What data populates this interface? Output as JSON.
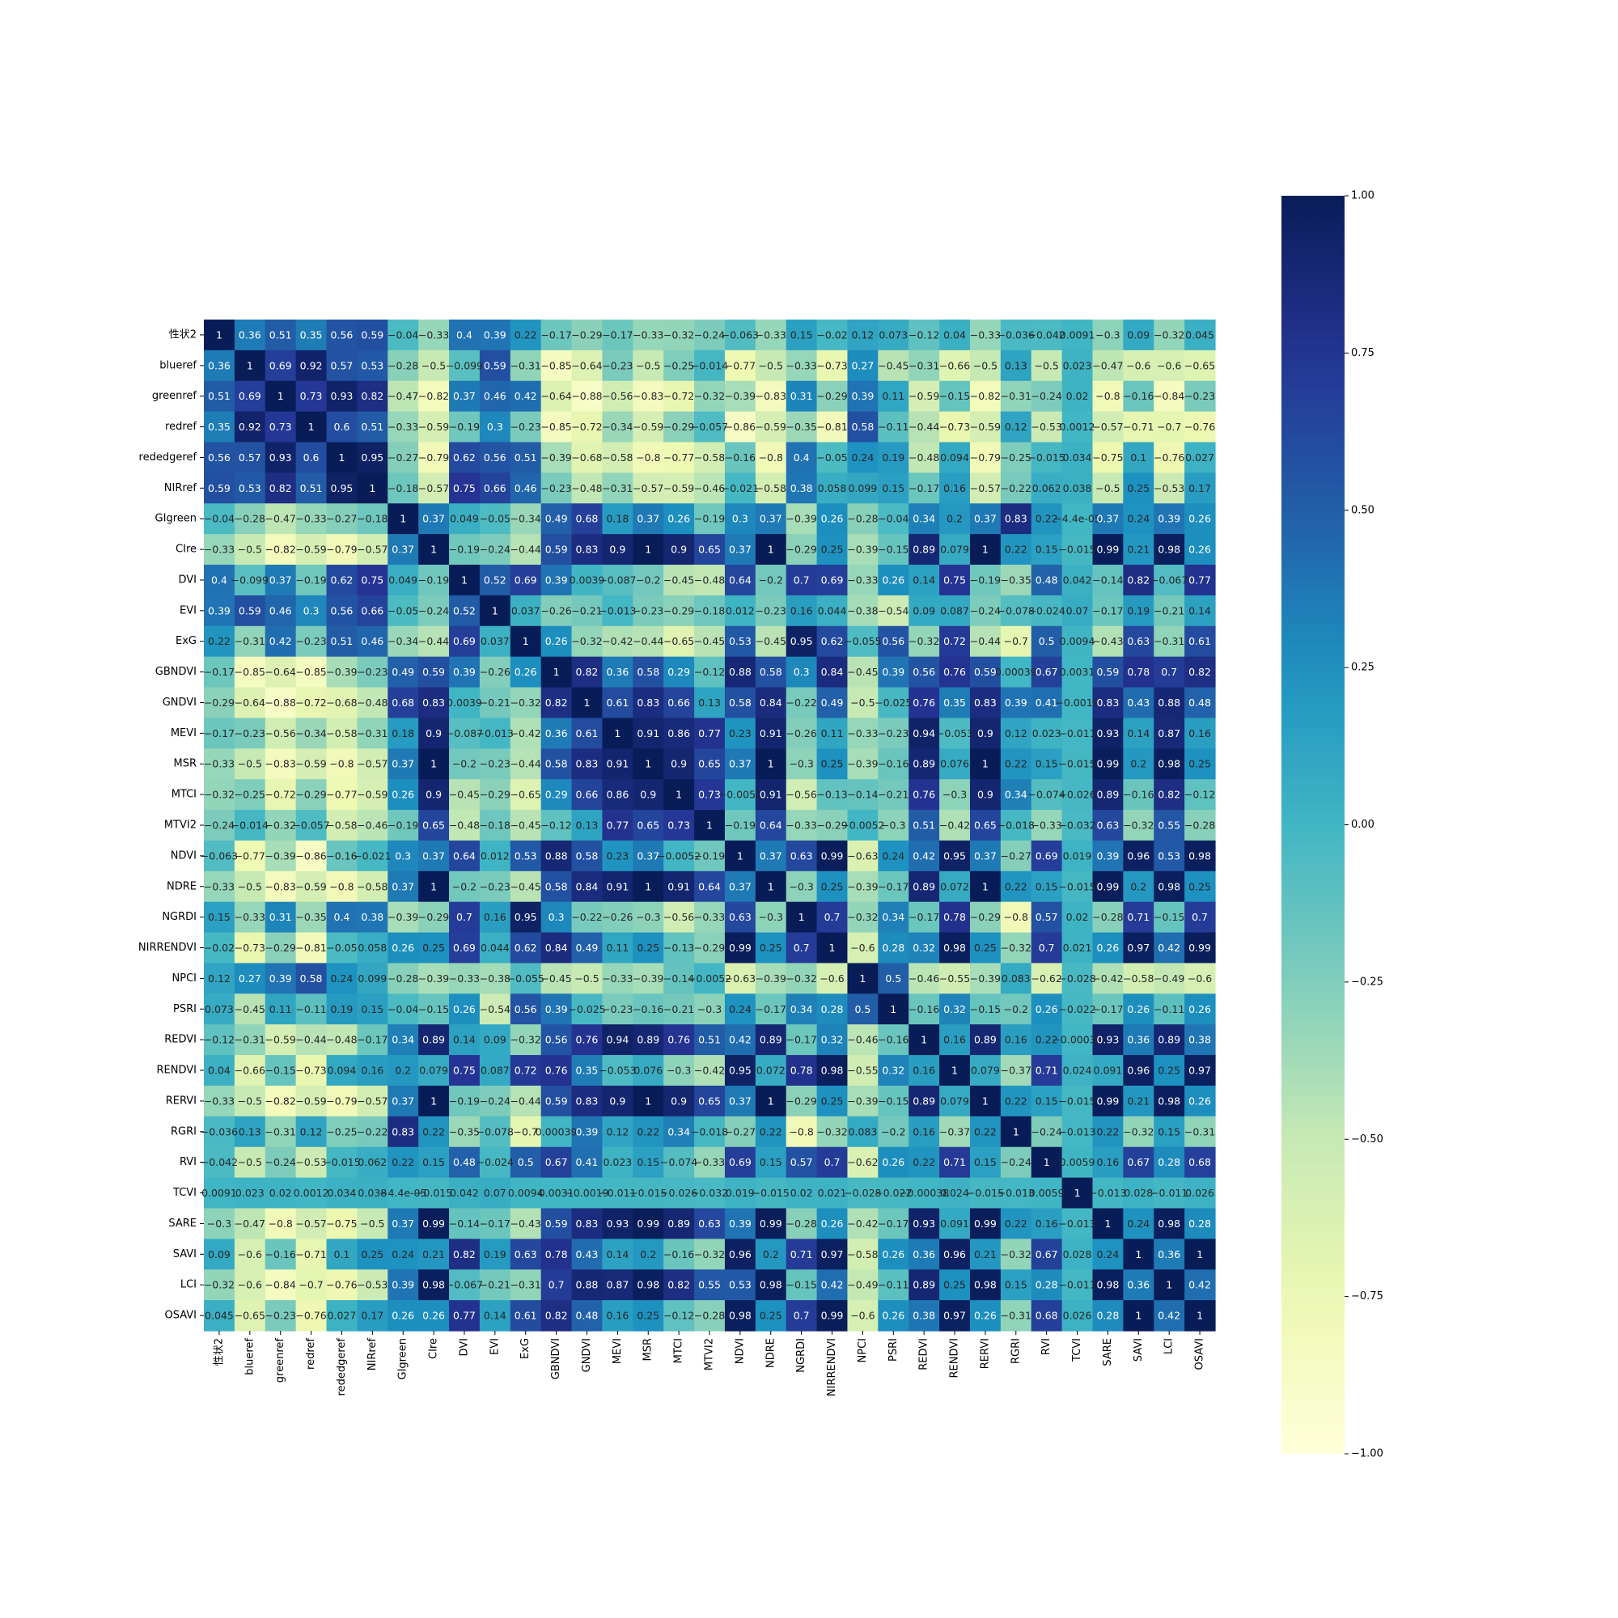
{
  "chart_data": {
    "type": "heatmap",
    "title": "",
    "xlabel": "",
    "ylabel": "",
    "colormap": "YlGnBu",
    "vmin": -1.0,
    "vmax": 1.0,
    "colorbar_ticks": [
      "1.00",
      "0.75",
      "0.50",
      "0.25",
      "0.00",
      "−0.25",
      "−0.50",
      "−0.75",
      "−1.00"
    ],
    "colorbar_tick_values": [
      1.0,
      0.75,
      0.5,
      0.25,
      0.0,
      -0.25,
      -0.5,
      -0.75,
      -1.0
    ],
    "labels": [
      "性状2",
      "blueref",
      "greenref",
      "redref",
      "rededgeref",
      "NIRref",
      "GIgreen",
      "CIre",
      "DVI",
      "EVI",
      "ExG",
      "GBNDVI",
      "GNDVI",
      "MEVI",
      "MSR",
      "MTCI",
      "MTVI2",
      "NDVI",
      "NDRE",
      "NGRDI",
      "NIRRENDVI",
      "NPCI",
      "PSRI",
      "REDVI",
      "RENDVI",
      "RERVI",
      "RGRI",
      "RVI",
      "TCVI",
      "SARE",
      "SAVI",
      "LCI",
      "OSAVI"
    ],
    "values": [
      [
        "1",
        "0.36",
        "0.51",
        "0.35",
        "0.56",
        "0.59",
        "-0.04",
        "-0.33",
        "0.4",
        "0.39",
        "0.22",
        "-0.17",
        "-0.29",
        "-0.17",
        "-0.33",
        "-0.32",
        "-0.24",
        "-0.063",
        "-0.33",
        "0.15",
        "-0.02",
        "0.12",
        "0.073",
        "-0.12",
        "0.04",
        "-0.33",
        "-0.036",
        "-0.042",
        "0.0091",
        "-0.3",
        "0.09",
        "-0.32",
        "0.045"
      ],
      [
        "0.36",
        "1",
        "0.69",
        "0.92",
        "0.57",
        "0.53",
        "-0.28",
        "-0.5",
        "-0.099",
        "0.59",
        "-0.31",
        "-0.85",
        "-0.64",
        "-0.23",
        "-0.5",
        "-0.25",
        "-0.014",
        "-0.77",
        "-0.5",
        "-0.33",
        "-0.73",
        "0.27",
        "-0.45",
        "-0.31",
        "-0.66",
        "-0.5",
        "0.13",
        "-0.5",
        "0.023",
        "-0.47",
        "-0.6",
        "-0.6",
        "-0.65"
      ],
      [
        "0.51",
        "0.69",
        "1",
        "0.73",
        "0.93",
        "0.82",
        "-0.47",
        "-0.82",
        "0.37",
        "0.46",
        "0.42",
        "-0.64",
        "-0.88",
        "-0.56",
        "-0.83",
        "-0.72",
        "-0.32",
        "-0.39",
        "-0.83",
        "0.31",
        "-0.29",
        "0.39",
        "0.11",
        "-0.59",
        "-0.15",
        "-0.82",
        "-0.31",
        "-0.24",
        "0.02",
        "-0.8",
        "-0.16",
        "-0.84",
        "-0.23"
      ],
      [
        "0.35",
        "0.92",
        "0.73",
        "1",
        "0.6",
        "0.51",
        "-0.33",
        "-0.59",
        "-0.19",
        "0.3",
        "-0.23",
        "-0.85",
        "-0.72",
        "-0.34",
        "-0.59",
        "-0.29",
        "-0.057",
        "-0.86",
        "-0.59",
        "-0.35",
        "-0.81",
        "0.58",
        "-0.11",
        "-0.44",
        "-0.73",
        "-0.59",
        "0.12",
        "-0.53",
        "0.0012",
        "-0.57",
        "-0.71",
        "-0.7",
        "-0.76"
      ],
      [
        "0.56",
        "0.57",
        "0.93",
        "0.6",
        "1",
        "0.95",
        "-0.27",
        "-0.79",
        "0.62",
        "0.56",
        "0.51",
        "-0.39",
        "-0.68",
        "-0.58",
        "-0.8",
        "-0.77",
        "-0.58",
        "-0.16",
        "-0.8",
        "0.4",
        "-0.05",
        "0.24",
        "0.19",
        "-0.48",
        "0.094",
        "-0.79",
        "-0.25",
        "-0.015",
        "0.034",
        "-0.75",
        "0.1",
        "-0.76",
        "0.027"
      ],
      [
        "0.59",
        "0.53",
        "0.82",
        "0.51",
        "0.95",
        "1",
        "-0.18",
        "-0.57",
        "0.75",
        "0.66",
        "0.46",
        "-0.23",
        "-0.48",
        "-0.31",
        "-0.57",
        "-0.59",
        "-0.46",
        "-0.021",
        "-0.58",
        "0.38",
        "0.058",
        "0.099",
        "0.15",
        "-0.17",
        "0.16",
        "-0.57",
        "-0.22",
        "0.062",
        "0.038",
        "-0.5",
        "0.25",
        "-0.53",
        "0.17"
      ],
      [
        "-0.04",
        "-0.28",
        "-0.47",
        "-0.33",
        "-0.27",
        "-0.18",
        "1",
        "0.37",
        "0.049",
        "-0.05",
        "-0.34",
        "0.49",
        "0.68",
        "0.18",
        "0.37",
        "0.26",
        "-0.19",
        "0.3",
        "0.37",
        "-0.39",
        "0.26",
        "-0.28",
        "-0.04",
        "0.34",
        "0.2",
        "0.37",
        "0.83",
        "0.22",
        "-4.4e-05",
        "0.37",
        "0.24",
        "0.39",
        "0.26"
      ],
      [
        "-0.33",
        "-0.5",
        "-0.82",
        "-0.59",
        "-0.79",
        "-0.57",
        "0.37",
        "1",
        "-0.19",
        "-0.24",
        "-0.44",
        "0.59",
        "0.83",
        "0.9",
        "1",
        "0.9",
        "0.65",
        "0.37",
        "1",
        "-0.29",
        "0.25",
        "-0.39",
        "-0.15",
        "0.89",
        "0.079",
        "1",
        "0.22",
        "0.15",
        "-0.015",
        "0.99",
        "0.21",
        "0.98",
        "0.26"
      ],
      [
        "0.4",
        "-0.099",
        "0.37",
        "-0.19",
        "0.62",
        "0.75",
        "0.049",
        "-0.19",
        "1",
        "0.52",
        "0.69",
        "0.39",
        "0.0039",
        "-0.087",
        "-0.2",
        "-0.45",
        "-0.48",
        "0.64",
        "-0.2",
        "0.7",
        "0.69",
        "-0.33",
        "0.26",
        "0.14",
        "0.75",
        "-0.19",
        "-0.35",
        "0.48",
        "0.042",
        "-0.14",
        "0.82",
        "-0.067",
        "0.77"
      ],
      [
        "0.39",
        "0.59",
        "0.46",
        "0.3",
        "0.56",
        "0.66",
        "-0.05",
        "-0.24",
        "0.52",
        "1",
        "0.037",
        "-0.26",
        "-0.21",
        "-0.013",
        "-0.23",
        "-0.29",
        "-0.18",
        "0.012",
        "-0.23",
        "0.16",
        "0.044",
        "-0.38",
        "-0.54",
        "0.09",
        "0.087",
        "-0.24",
        "-0.078",
        "-0.024",
        "0.07",
        "-0.17",
        "0.19",
        "-0.21",
        "0.14"
      ],
      [
        "0.22",
        "-0.31",
        "0.42",
        "-0.23",
        "0.51",
        "0.46",
        "-0.34",
        "-0.44",
        "0.69",
        "0.037",
        "1",
        "0.26",
        "-0.32",
        "-0.42",
        "-0.44",
        "-0.65",
        "-0.45",
        "0.53",
        "-0.45",
        "0.95",
        "0.62",
        "-0.055",
        "0.56",
        "-0.32",
        "0.72",
        "-0.44",
        "-0.7",
        "0.5",
        "0.0094",
        "-0.43",
        "0.63",
        "-0.31",
        "0.61"
      ],
      [
        "-0.17",
        "-0.85",
        "-0.64",
        "-0.85",
        "-0.39",
        "-0.23",
        "0.49",
        "0.59",
        "0.39",
        "-0.26",
        "0.26",
        "1",
        "0.82",
        "0.36",
        "0.58",
        "0.29",
        "-0.12",
        "0.88",
        "0.58",
        "0.3",
        "0.84",
        "-0.45",
        "0.39",
        "0.56",
        "0.76",
        "0.59",
        "0.00039",
        "0.67",
        "0.0031",
        "0.59",
        "0.78",
        "0.7",
        "0.82"
      ],
      [
        "-0.29",
        "-0.64",
        "-0.88",
        "-0.72",
        "-0.68",
        "-0.48",
        "0.68",
        "0.83",
        "0.0039",
        "-0.21",
        "-0.32",
        "0.82",
        "1",
        "0.61",
        "0.83",
        "0.66",
        "0.13",
        "0.58",
        "0.84",
        "-0.22",
        "0.49",
        "-0.5",
        "-0.025",
        "0.76",
        "0.35",
        "0.83",
        "0.39",
        "0.41",
        "-0.0019",
        "0.83",
        "0.43",
        "0.88",
        "0.48"
      ],
      [
        "-0.17",
        "-0.23",
        "-0.56",
        "-0.34",
        "-0.58",
        "-0.31",
        "0.18",
        "0.9",
        "-0.087",
        "-0.013",
        "-0.42",
        "0.36",
        "0.61",
        "1",
        "0.91",
        "0.86",
        "0.77",
        "0.23",
        "0.91",
        "-0.26",
        "0.11",
        "-0.33",
        "-0.23",
        "0.94",
        "-0.053",
        "0.9",
        "0.12",
        "0.023",
        "-0.011",
        "0.93",
        "0.14",
        "0.87",
        "0.16"
      ],
      [
        "-0.33",
        "-0.5",
        "-0.83",
        "-0.59",
        "-0.8",
        "-0.57",
        "0.37",
        "1",
        "-0.2",
        "-0.23",
        "-0.44",
        "0.58",
        "0.83",
        "0.91",
        "1",
        "0.9",
        "0.65",
        "0.37",
        "1",
        "-0.3",
        "0.25",
        "-0.39",
        "-0.16",
        "0.89",
        "0.076",
        "1",
        "0.22",
        "0.15",
        "-0.015",
        "0.99",
        "0.2",
        "0.98",
        "0.25"
      ],
      [
        "-0.32",
        "-0.25",
        "-0.72",
        "-0.29",
        "-0.77",
        "-0.59",
        "0.26",
        "0.9",
        "-0.45",
        "-0.29",
        "-0.65",
        "0.29",
        "0.66",
        "0.86",
        "0.9",
        "1",
        "0.73",
        "-0.0052",
        "0.91",
        "-0.56",
        "-0.13",
        "-0.14",
        "-0.21",
        "0.76",
        "-0.3",
        "0.9",
        "0.34",
        "-0.074",
        "-0.026",
        "0.89",
        "-0.16",
        "0.82",
        "-0.12"
      ],
      [
        "-0.24",
        "-0.014",
        "-0.32",
        "-0.057",
        "-0.58",
        "-0.46",
        "-0.19",
        "0.65",
        "-0.48",
        "-0.18",
        "-0.45",
        "-0.12",
        "0.13",
        "0.77",
        "0.65",
        "0.73",
        "1",
        "-0.19",
        "0.64",
        "-0.33",
        "-0.29",
        "-0.0052",
        "-0.3",
        "0.51",
        "-0.42",
        "0.65",
        "-0.018",
        "-0.33",
        "-0.032",
        "0.63",
        "-0.32",
        "0.55",
        "-0.28"
      ],
      [
        "-0.063",
        "-0.77",
        "-0.39",
        "-0.86",
        "-0.16",
        "-0.021",
        "0.3",
        "0.37",
        "0.64",
        "0.012",
        "0.53",
        "0.88",
        "0.58",
        "0.23",
        "0.37",
        "-0.0052",
        "-0.19",
        "1",
        "0.37",
        "0.63",
        "0.99",
        "-0.63",
        "0.24",
        "0.42",
        "0.95",
        "0.37",
        "-0.27",
        "0.69",
        "0.019",
        "0.39",
        "0.96",
        "0.53",
        "0.98"
      ],
      [
        "-0.33",
        "-0.5",
        "-0.83",
        "-0.59",
        "-0.8",
        "-0.58",
        "0.37",
        "1",
        "-0.2",
        "-0.23",
        "-0.45",
        "0.58",
        "0.84",
        "0.91",
        "1",
        "0.91",
        "0.64",
        "0.37",
        "1",
        "-0.3",
        "0.25",
        "-0.39",
        "-0.17",
        "0.89",
        "0.072",
        "1",
        "0.22",
        "0.15",
        "-0.015",
        "0.99",
        "0.2",
        "0.98",
        "0.25"
      ],
      [
        "0.15",
        "-0.33",
        "0.31",
        "-0.35",
        "0.4",
        "0.38",
        "-0.39",
        "-0.29",
        "0.7",
        "0.16",
        "0.95",
        "0.3",
        "-0.22",
        "-0.26",
        "-0.3",
        "-0.56",
        "-0.33",
        "0.63",
        "-0.3",
        "1",
        "0.7",
        "-0.32",
        "0.34",
        "-0.17",
        "0.78",
        "-0.29",
        "-0.8",
        "0.57",
        "0.02",
        "-0.28",
        "0.71",
        "-0.15",
        "0.7"
      ],
      [
        "-0.02",
        "-0.73",
        "-0.29",
        "-0.81",
        "-0.05",
        "0.058",
        "0.26",
        "0.25",
        "0.69",
        "0.044",
        "0.62",
        "0.84",
        "0.49",
        "0.11",
        "0.25",
        "-0.13",
        "-0.29",
        "0.99",
        "0.25",
        "0.7",
        "1",
        "-0.6",
        "0.28",
        "0.32",
        "0.98",
        "0.25",
        "-0.32",
        "0.7",
        "0.021",
        "0.26",
        "0.97",
        "0.42",
        "0.99"
      ],
      [
        "0.12",
        "0.27",
        "0.39",
        "0.58",
        "0.24",
        "0.099",
        "-0.28",
        "-0.39",
        "-0.33",
        "-0.38",
        "-0.055",
        "-0.45",
        "-0.5",
        "-0.33",
        "-0.39",
        "-0.14",
        "-0.0052",
        "-0.63",
        "-0.39",
        "-0.32",
        "-0.6",
        "1",
        "0.5",
        "-0.46",
        "-0.55",
        "-0.39",
        "0.083",
        "-0.62",
        "-0.028",
        "-0.42",
        "-0.58",
        "-0.49",
        "-0.6"
      ],
      [
        "0.073",
        "-0.45",
        "0.11",
        "-0.11",
        "0.19",
        "0.15",
        "-0.04",
        "-0.15",
        "0.26",
        "-0.54",
        "0.56",
        "0.39",
        "-0.025",
        "-0.23",
        "-0.16",
        "-0.21",
        "-0.3",
        "0.24",
        "-0.17",
        "0.34",
        "0.28",
        "0.5",
        "1",
        "-0.16",
        "0.32",
        "-0.15",
        "-0.2",
        "0.26",
        "-0.022",
        "-0.17",
        "0.26",
        "-0.11",
        "0.26"
      ],
      [
        "-0.12",
        "-0.31",
        "-0.59",
        "-0.44",
        "-0.48",
        "-0.17",
        "0.34",
        "0.89",
        "0.14",
        "0.09",
        "-0.32",
        "0.56",
        "0.76",
        "0.94",
        "0.89",
        "0.76",
        "0.51",
        "0.42",
        "0.89",
        "-0.17",
        "0.32",
        "-0.46",
        "-0.16",
        "1",
        "0.16",
        "0.89",
        "0.16",
        "0.22",
        "-0.00038",
        "0.93",
        "0.36",
        "0.89",
        "0.38"
      ],
      [
        "0.04",
        "-0.66",
        "-0.15",
        "-0.73",
        "0.094",
        "0.16",
        "0.2",
        "0.079",
        "0.75",
        "0.087",
        "0.72",
        "0.76",
        "0.35",
        "-0.053",
        "0.076",
        "-0.3",
        "-0.42",
        "0.95",
        "0.072",
        "0.78",
        "0.98",
        "-0.55",
        "0.32",
        "0.16",
        "1",
        "0.079",
        "-0.37",
        "0.71",
        "0.024",
        "0.091",
        "0.96",
        "0.25",
        "0.97"
      ],
      [
        "-0.33",
        "-0.5",
        "-0.82",
        "-0.59",
        "-0.79",
        "-0.57",
        "0.37",
        "1",
        "-0.19",
        "-0.24",
        "-0.44",
        "0.59",
        "0.83",
        "0.9",
        "1",
        "0.9",
        "0.65",
        "0.37",
        "1",
        "-0.29",
        "0.25",
        "-0.39",
        "-0.15",
        "0.89",
        "0.079",
        "1",
        "0.22",
        "0.15",
        "-0.015",
        "0.99",
        "0.21",
        "0.98",
        "0.26"
      ],
      [
        "-0.036",
        "0.13",
        "-0.31",
        "0.12",
        "-0.25",
        "-0.22",
        "0.83",
        "0.22",
        "-0.35",
        "-0.078",
        "-0.7",
        "0.00039",
        "0.39",
        "0.12",
        "0.22",
        "0.34",
        "-0.018",
        "-0.27",
        "0.22",
        "-0.8",
        "-0.32",
        "0.083",
        "-0.2",
        "0.16",
        "-0.37",
        "0.22",
        "1",
        "-0.24",
        "-0.013",
        "0.22",
        "-0.32",
        "0.15",
        "-0.31"
      ],
      [
        "-0.042",
        "-0.5",
        "-0.24",
        "-0.53",
        "-0.015",
        "0.062",
        "0.22",
        "0.15",
        "0.48",
        "-0.024",
        "0.5",
        "0.67",
        "0.41",
        "0.023",
        "0.15",
        "-0.074",
        "-0.33",
        "0.69",
        "0.15",
        "0.57",
        "0.7",
        "-0.62",
        "0.26",
        "0.22",
        "0.71",
        "0.15",
        "-0.24",
        "1",
        "0.0059",
        "0.16",
        "0.67",
        "0.28",
        "0.68"
      ],
      [
        "0.0091",
        "0.023",
        "0.02",
        "0.0012",
        "0.034",
        "0.038",
        "-4.4e-05",
        "-0.015",
        "0.042",
        "0.07",
        "0.0094",
        "0.0031",
        "-0.0019",
        "-0.011",
        "-0.015",
        "-0.026",
        "-0.032",
        "0.019",
        "-0.015",
        "0.02",
        "0.021",
        "-0.028",
        "-0.022",
        "-0.00038",
        "0.024",
        "-0.015",
        "-0.013",
        "0.0059",
        "1",
        "-0.013",
        "0.028",
        "-0.011",
        "0.026"
      ],
      [
        "-0.3",
        "-0.47",
        "-0.8",
        "-0.57",
        "-0.75",
        "-0.5",
        "0.37",
        "0.99",
        "-0.14",
        "-0.17",
        "-0.43",
        "0.59",
        "0.83",
        "0.93",
        "0.99",
        "0.89",
        "0.63",
        "0.39",
        "0.99",
        "-0.28",
        "0.26",
        "-0.42",
        "-0.17",
        "0.93",
        "0.091",
        "0.99",
        "0.22",
        "0.16",
        "-0.013",
        "1",
        "0.24",
        "0.98",
        "0.28"
      ],
      [
        "0.09",
        "-0.6",
        "-0.16",
        "-0.71",
        "0.1",
        "0.25",
        "0.24",
        "0.21",
        "0.82",
        "0.19",
        "0.63",
        "0.78",
        "0.43",
        "0.14",
        "0.2",
        "-0.16",
        "-0.32",
        "0.96",
        "0.2",
        "0.71",
        "0.97",
        "-0.58",
        "0.26",
        "0.36",
        "0.96",
        "0.21",
        "-0.32",
        "0.67",
        "0.028",
        "0.24",
        "1",
        "0.36",
        "1"
      ],
      [
        "-0.32",
        "-0.6",
        "-0.84",
        "-0.7",
        "-0.76",
        "-0.53",
        "0.39",
        "0.98",
        "-0.067",
        "-0.21",
        "-0.31",
        "0.7",
        "0.88",
        "0.87",
        "0.98",
        "0.82",
        "0.55",
        "0.53",
        "0.98",
        "-0.15",
        "0.42",
        "-0.49",
        "-0.11",
        "0.89",
        "0.25",
        "0.98",
        "0.15",
        "0.28",
        "-0.011",
        "0.98",
        "0.36",
        "1",
        "0.42"
      ],
      [
        "0.045",
        "-0.65",
        "-0.23",
        "-0.76",
        "0.027",
        "0.17",
        "0.26",
        "0.26",
        "0.77",
        "0.14",
        "0.61",
        "0.82",
        "0.48",
        "0.16",
        "0.25",
        "-0.12",
        "-0.28",
        "0.98",
        "0.25",
        "0.7",
        "0.99",
        "-0.6",
        "0.26",
        "0.38",
        "0.97",
        "0.26",
        "-0.31",
        "0.68",
        "0.026",
        "0.28",
        "1",
        "0.42",
        "1"
      ]
    ]
  }
}
